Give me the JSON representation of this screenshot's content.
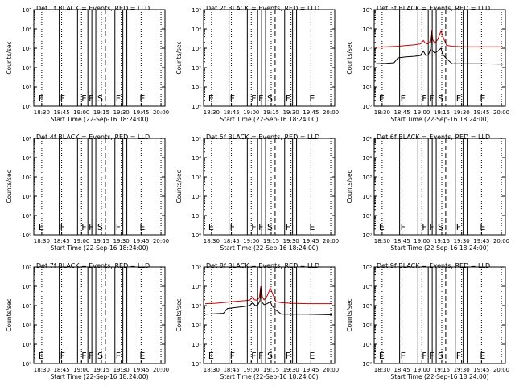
{
  "figure": {
    "ytick_labels": [
      "10⁰",
      "10¹",
      "10²",
      "10³",
      "10⁴",
      "10⁵"
    ],
    "ylabel": "Counts/sec",
    "xtick_labels": [
      "18:30",
      "18:45",
      "19:00",
      "19:15",
      "19:30",
      "19:45",
      "20:00"
    ],
    "xlabel": "Start Time (22-Sep-16 18:24:00)",
    "colors": {
      "events": "#000000",
      "lld": "#cc0000",
      "frame": "#000000"
    },
    "markers": {
      "solid_lines": [
        18.72,
        18.95,
        19.08,
        19.13,
        19.18,
        19.42,
        19.52,
        19.57
      ],
      "dashed_line": 19.3,
      "dotted_lines": [
        18.5,
        18.75,
        19.0,
        19.25,
        19.5,
        19.75,
        20.0
      ],
      "letters": [
        {
          "text": "E",
          "x": 18.46
        },
        {
          "text": "F",
          "x": 18.73
        },
        {
          "text": "F",
          "x": 19.0
        },
        {
          "text": "F",
          "x": 19.09
        },
        {
          "text": "S",
          "x": 19.2
        },
        {
          "text": "F",
          "x": 19.43
        },
        {
          "text": "E",
          "x": 19.73
        }
      ]
    }
  },
  "chart_data": [
    {
      "type": "line",
      "title": "Det 1f BLACK = Events, RED = LLD",
      "xlim": [
        18.4,
        20.05
      ],
      "ylim_log10": [
        0,
        5
      ],
      "series": []
    },
    {
      "type": "line",
      "title": "Det 2f BLACK = Events, RED = LLD",
      "xlim": [
        18.4,
        20.05
      ],
      "ylim_log10": [
        0,
        5
      ],
      "series": []
    },
    {
      "type": "line",
      "title": "Det 3f BLACK = Events, RED = LLD",
      "xlim": [
        18.4,
        20.05
      ],
      "ylim_log10": [
        0,
        5
      ],
      "series": [
        {
          "color": "red",
          "log10_points": [
            [
              18.42,
              3.05
            ],
            [
              18.55,
              3.07
            ],
            [
              18.7,
              3.1
            ],
            [
              18.8,
              3.14
            ],
            [
              18.9,
              3.17
            ],
            [
              18.98,
              3.22
            ],
            [
              19.02,
              3.4
            ],
            [
              19.04,
              3.28
            ],
            [
              19.07,
              3.23
            ],
            [
              19.1,
              3.32
            ],
            [
              19.12,
              3.95
            ],
            [
              19.14,
              3.42
            ],
            [
              19.16,
              3.25
            ],
            [
              19.2,
              3.45
            ],
            [
              19.24,
              3.9
            ],
            [
              19.27,
              3.55
            ],
            [
              19.31,
              3.15
            ],
            [
              19.38,
              3.1
            ],
            [
              19.5,
              3.08
            ],
            [
              19.7,
              3.07
            ],
            [
              20.02,
              3.07
            ]
          ]
        },
        {
          "color": "black",
          "log10_points": [
            [
              18.42,
              2.2
            ],
            [
              18.55,
              2.22
            ],
            [
              18.65,
              2.25
            ],
            [
              18.7,
              2.5
            ],
            [
              18.8,
              2.55
            ],
            [
              18.9,
              2.58
            ],
            [
              18.98,
              2.62
            ],
            [
              19.02,
              2.85
            ],
            [
              19.05,
              2.62
            ],
            [
              19.08,
              2.65
            ],
            [
              19.11,
              2.95
            ],
            [
              19.12,
              3.85
            ],
            [
              19.13,
              2.9
            ],
            [
              19.16,
              2.75
            ],
            [
              19.2,
              2.85
            ],
            [
              19.24,
              3.0
            ],
            [
              19.26,
              2.7
            ],
            [
              19.3,
              2.5
            ],
            [
              19.38,
              2.2
            ],
            [
              19.5,
              2.2
            ],
            [
              19.7,
              2.2
            ],
            [
              20.02,
              2.18
            ]
          ]
        }
      ]
    },
    {
      "type": "line",
      "title": "Det 4f BLACK = Events, RED = LLD",
      "xlim": [
        18.4,
        20.05
      ],
      "ylim_log10": [
        0,
        5
      ],
      "series": []
    },
    {
      "type": "line",
      "title": "Det 5f BLACK = Events, RED = LLD",
      "xlim": [
        18.4,
        20.05
      ],
      "ylim_log10": [
        0,
        5
      ],
      "series": []
    },
    {
      "type": "line",
      "title": "Det 6f BLACK = Events, RED = LLD",
      "xlim": [
        18.4,
        20.05
      ],
      "ylim_log10": [
        0,
        5
      ],
      "series": []
    },
    {
      "type": "line",
      "title": "Det 7f BLACK = Events, RED = LLD",
      "xlim": [
        18.4,
        20.05
      ],
      "ylim_log10": [
        0,
        5
      ],
      "series": []
    },
    {
      "type": "line",
      "title": "Det 8f BLACK = Events, RED = LLD",
      "xlim": [
        18.4,
        20.05
      ],
      "ylim_log10": [
        0,
        5
      ],
      "series": [
        {
          "color": "red",
          "log10_points": [
            [
              18.42,
              3.1
            ],
            [
              18.55,
              3.12
            ],
            [
              18.7,
              3.18
            ],
            [
              18.8,
              3.22
            ],
            [
              18.9,
              3.25
            ],
            [
              18.98,
              3.28
            ],
            [
              19.02,
              3.45
            ],
            [
              19.04,
              3.3
            ],
            [
              19.07,
              3.28
            ],
            [
              19.1,
              3.4
            ],
            [
              19.12,
              4.0
            ],
            [
              19.14,
              3.45
            ],
            [
              19.16,
              3.3
            ],
            [
              19.2,
              3.5
            ],
            [
              19.24,
              3.9
            ],
            [
              19.27,
              3.6
            ],
            [
              19.31,
              3.2
            ],
            [
              19.38,
              3.15
            ],
            [
              19.5,
              3.12
            ],
            [
              19.7,
              3.1
            ],
            [
              20.02,
              3.1
            ]
          ]
        },
        {
          "color": "black",
          "log10_points": [
            [
              18.42,
              2.55
            ],
            [
              18.55,
              2.58
            ],
            [
              18.65,
              2.6
            ],
            [
              18.7,
              2.85
            ],
            [
              18.8,
              2.9
            ],
            [
              18.9,
              2.95
            ],
            [
              18.98,
              3.0
            ],
            [
              19.02,
              3.15
            ],
            [
              19.05,
              3.0
            ],
            [
              19.08,
              3.02
            ],
            [
              19.11,
              3.25
            ],
            [
              19.12,
              3.9
            ],
            [
              19.13,
              3.2
            ],
            [
              19.16,
              3.05
            ],
            [
              19.2,
              3.1
            ],
            [
              19.24,
              3.2
            ],
            [
              19.26,
              3.0
            ],
            [
              19.3,
              2.8
            ],
            [
              19.38,
              2.55
            ],
            [
              19.5,
              2.55
            ],
            [
              19.7,
              2.55
            ],
            [
              20.02,
              2.52
            ]
          ]
        }
      ]
    },
    {
      "type": "line",
      "title": "Det 9f BLACK = Events, RED = LLD",
      "xlim": [
        18.4,
        20.05
      ],
      "ylim_log10": [
        0,
        5
      ],
      "series": []
    }
  ]
}
